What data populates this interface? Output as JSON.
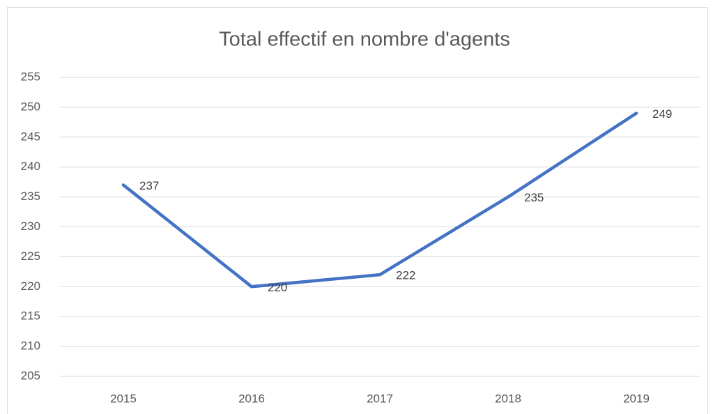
{
  "chart_data": {
    "type": "line",
    "title": "Total effectif en nombre d'agents",
    "categories": [
      "2015",
      "2016",
      "2017",
      "2018",
      "2019"
    ],
    "values": [
      237,
      220,
      222,
      235,
      249
    ],
    "color": "#4472c4",
    "ylim": [
      205,
      255
    ],
    "yticks": [
      205,
      210,
      215,
      220,
      225,
      230,
      235,
      240,
      245,
      250,
      255
    ],
    "grid": true,
    "data_labels": true
  }
}
